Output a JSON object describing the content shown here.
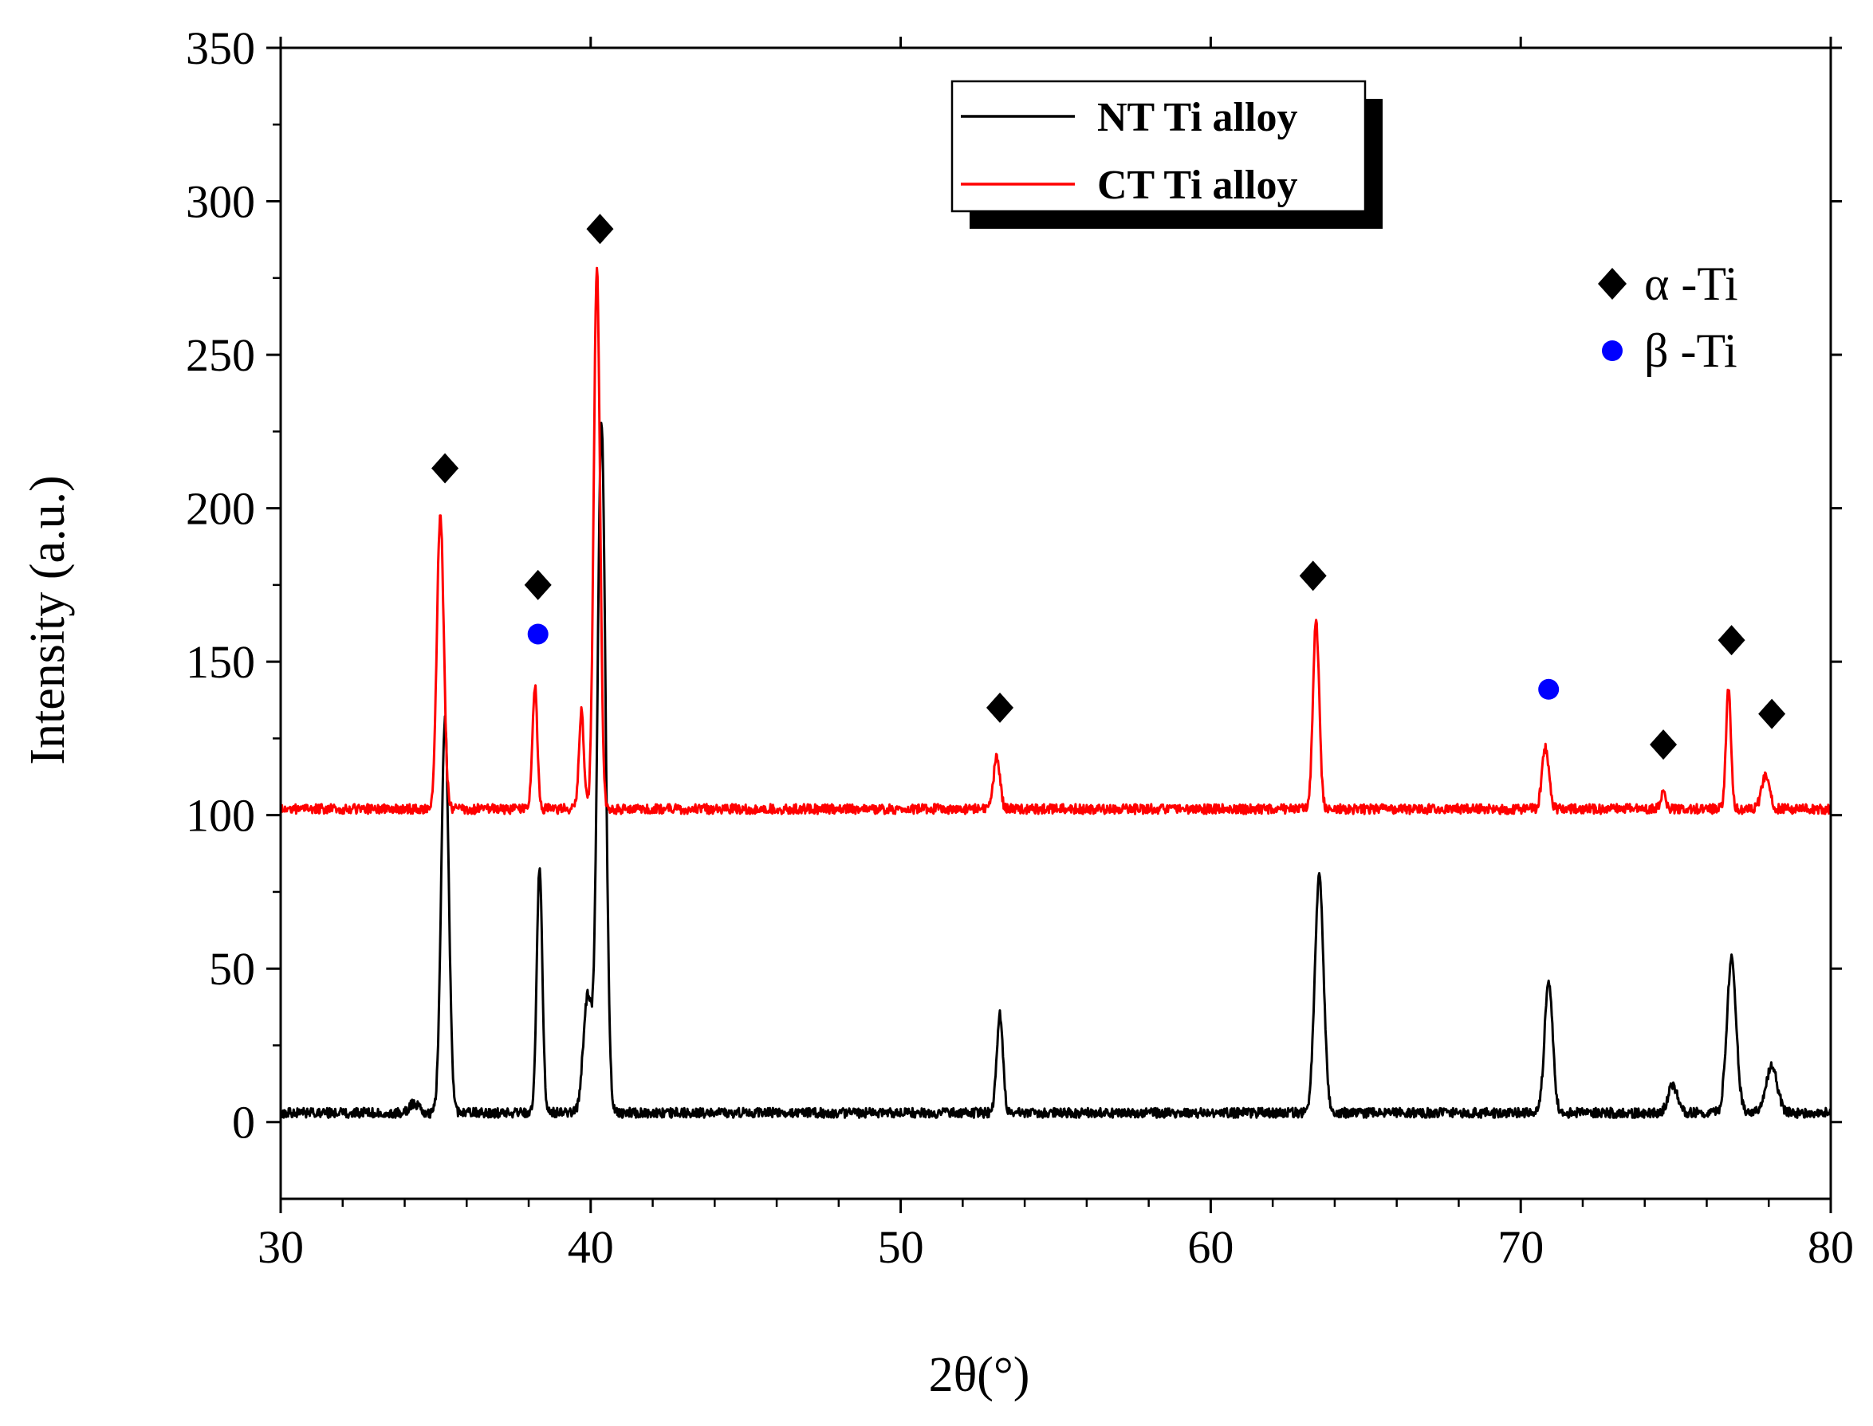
{
  "chart_data": {
    "type": "line",
    "title": "",
    "xlabel": "2θ(°)",
    "ylabel": "Intensity (a.u.)",
    "xlim": [
      30,
      80
    ],
    "ylim": [
      -25,
      350
    ],
    "xticks": [
      30,
      40,
      50,
      60,
      70,
      80
    ],
    "yticks": [
      0,
      50,
      100,
      150,
      200,
      250,
      300,
      350
    ],
    "legend_position": "top-center",
    "series": [
      {
        "name": "NT Ti alloy",
        "color": "#000000",
        "baseline": 3,
        "peaks": [
          {
            "x": 34.3,
            "y": 3,
            "width": 0.15
          },
          {
            "x": 35.3,
            "y": 128,
            "width": 0.12
          },
          {
            "x": 38.35,
            "y": 80,
            "width": 0.09
          },
          {
            "x": 39.9,
            "y": 38,
            "width": 0.14
          },
          {
            "x": 40.35,
            "y": 224,
            "width": 0.13
          },
          {
            "x": 53.2,
            "y": 32,
            "width": 0.1
          },
          {
            "x": 63.5,
            "y": 77,
            "width": 0.14
          },
          {
            "x": 70.9,
            "y": 43,
            "width": 0.13
          },
          {
            "x": 74.9,
            "y": 9,
            "width": 0.15
          },
          {
            "x": 76.8,
            "y": 50,
            "width": 0.15
          },
          {
            "x": 78.1,
            "y": 15,
            "width": 0.18
          }
        ]
      },
      {
        "name": "CT Ti alloy",
        "color": "#ff0000",
        "baseline": 102,
        "peaks": [
          {
            "x": 35.15,
            "y": 96,
            "width": 0.11
          },
          {
            "x": 38.2,
            "y": 40,
            "width": 0.08
          },
          {
            "x": 39.7,
            "y": 32,
            "width": 0.08
          },
          {
            "x": 40.2,
            "y": 176,
            "width": 0.1
          },
          {
            "x": 53.1,
            "y": 17,
            "width": 0.1
          },
          {
            "x": 63.4,
            "y": 61,
            "width": 0.1
          },
          {
            "x": 70.8,
            "y": 20,
            "width": 0.11
          },
          {
            "x": 74.6,
            "y": 6,
            "width": 0.08
          },
          {
            "x": 76.7,
            "y": 39,
            "width": 0.08
          },
          {
            "x": 77.9,
            "y": 11,
            "width": 0.13
          }
        ]
      }
    ],
    "annotations": [
      {
        "marker": "diamond",
        "x": 35.3,
        "y": 213
      },
      {
        "marker": "diamond",
        "x": 38.3,
        "y": 175
      },
      {
        "marker": "circle",
        "x": 38.3,
        "y": 159
      },
      {
        "marker": "diamond",
        "x": 40.3,
        "y": 291
      },
      {
        "marker": "diamond",
        "x": 53.2,
        "y": 135
      },
      {
        "marker": "diamond",
        "x": 63.3,
        "y": 178
      },
      {
        "marker": "circle",
        "x": 70.9,
        "y": 141
      },
      {
        "marker": "diamond",
        "x": 74.6,
        "y": 123
      },
      {
        "marker": "diamond",
        "x": 76.8,
        "y": 157
      },
      {
        "marker": "diamond",
        "x": 78.1,
        "y": 133
      }
    ],
    "phase_legend": [
      {
        "marker": "diamond",
        "label": "α -Ti",
        "color": "#000000"
      },
      {
        "marker": "circle",
        "label": "β -Ti",
        "color": "#0000ff"
      }
    ]
  },
  "legend": {
    "items": [
      {
        "label": "NT Ti alloy",
        "color": "#000000"
      },
      {
        "label": "CT Ti alloy",
        "color": "#ff0000"
      }
    ]
  }
}
